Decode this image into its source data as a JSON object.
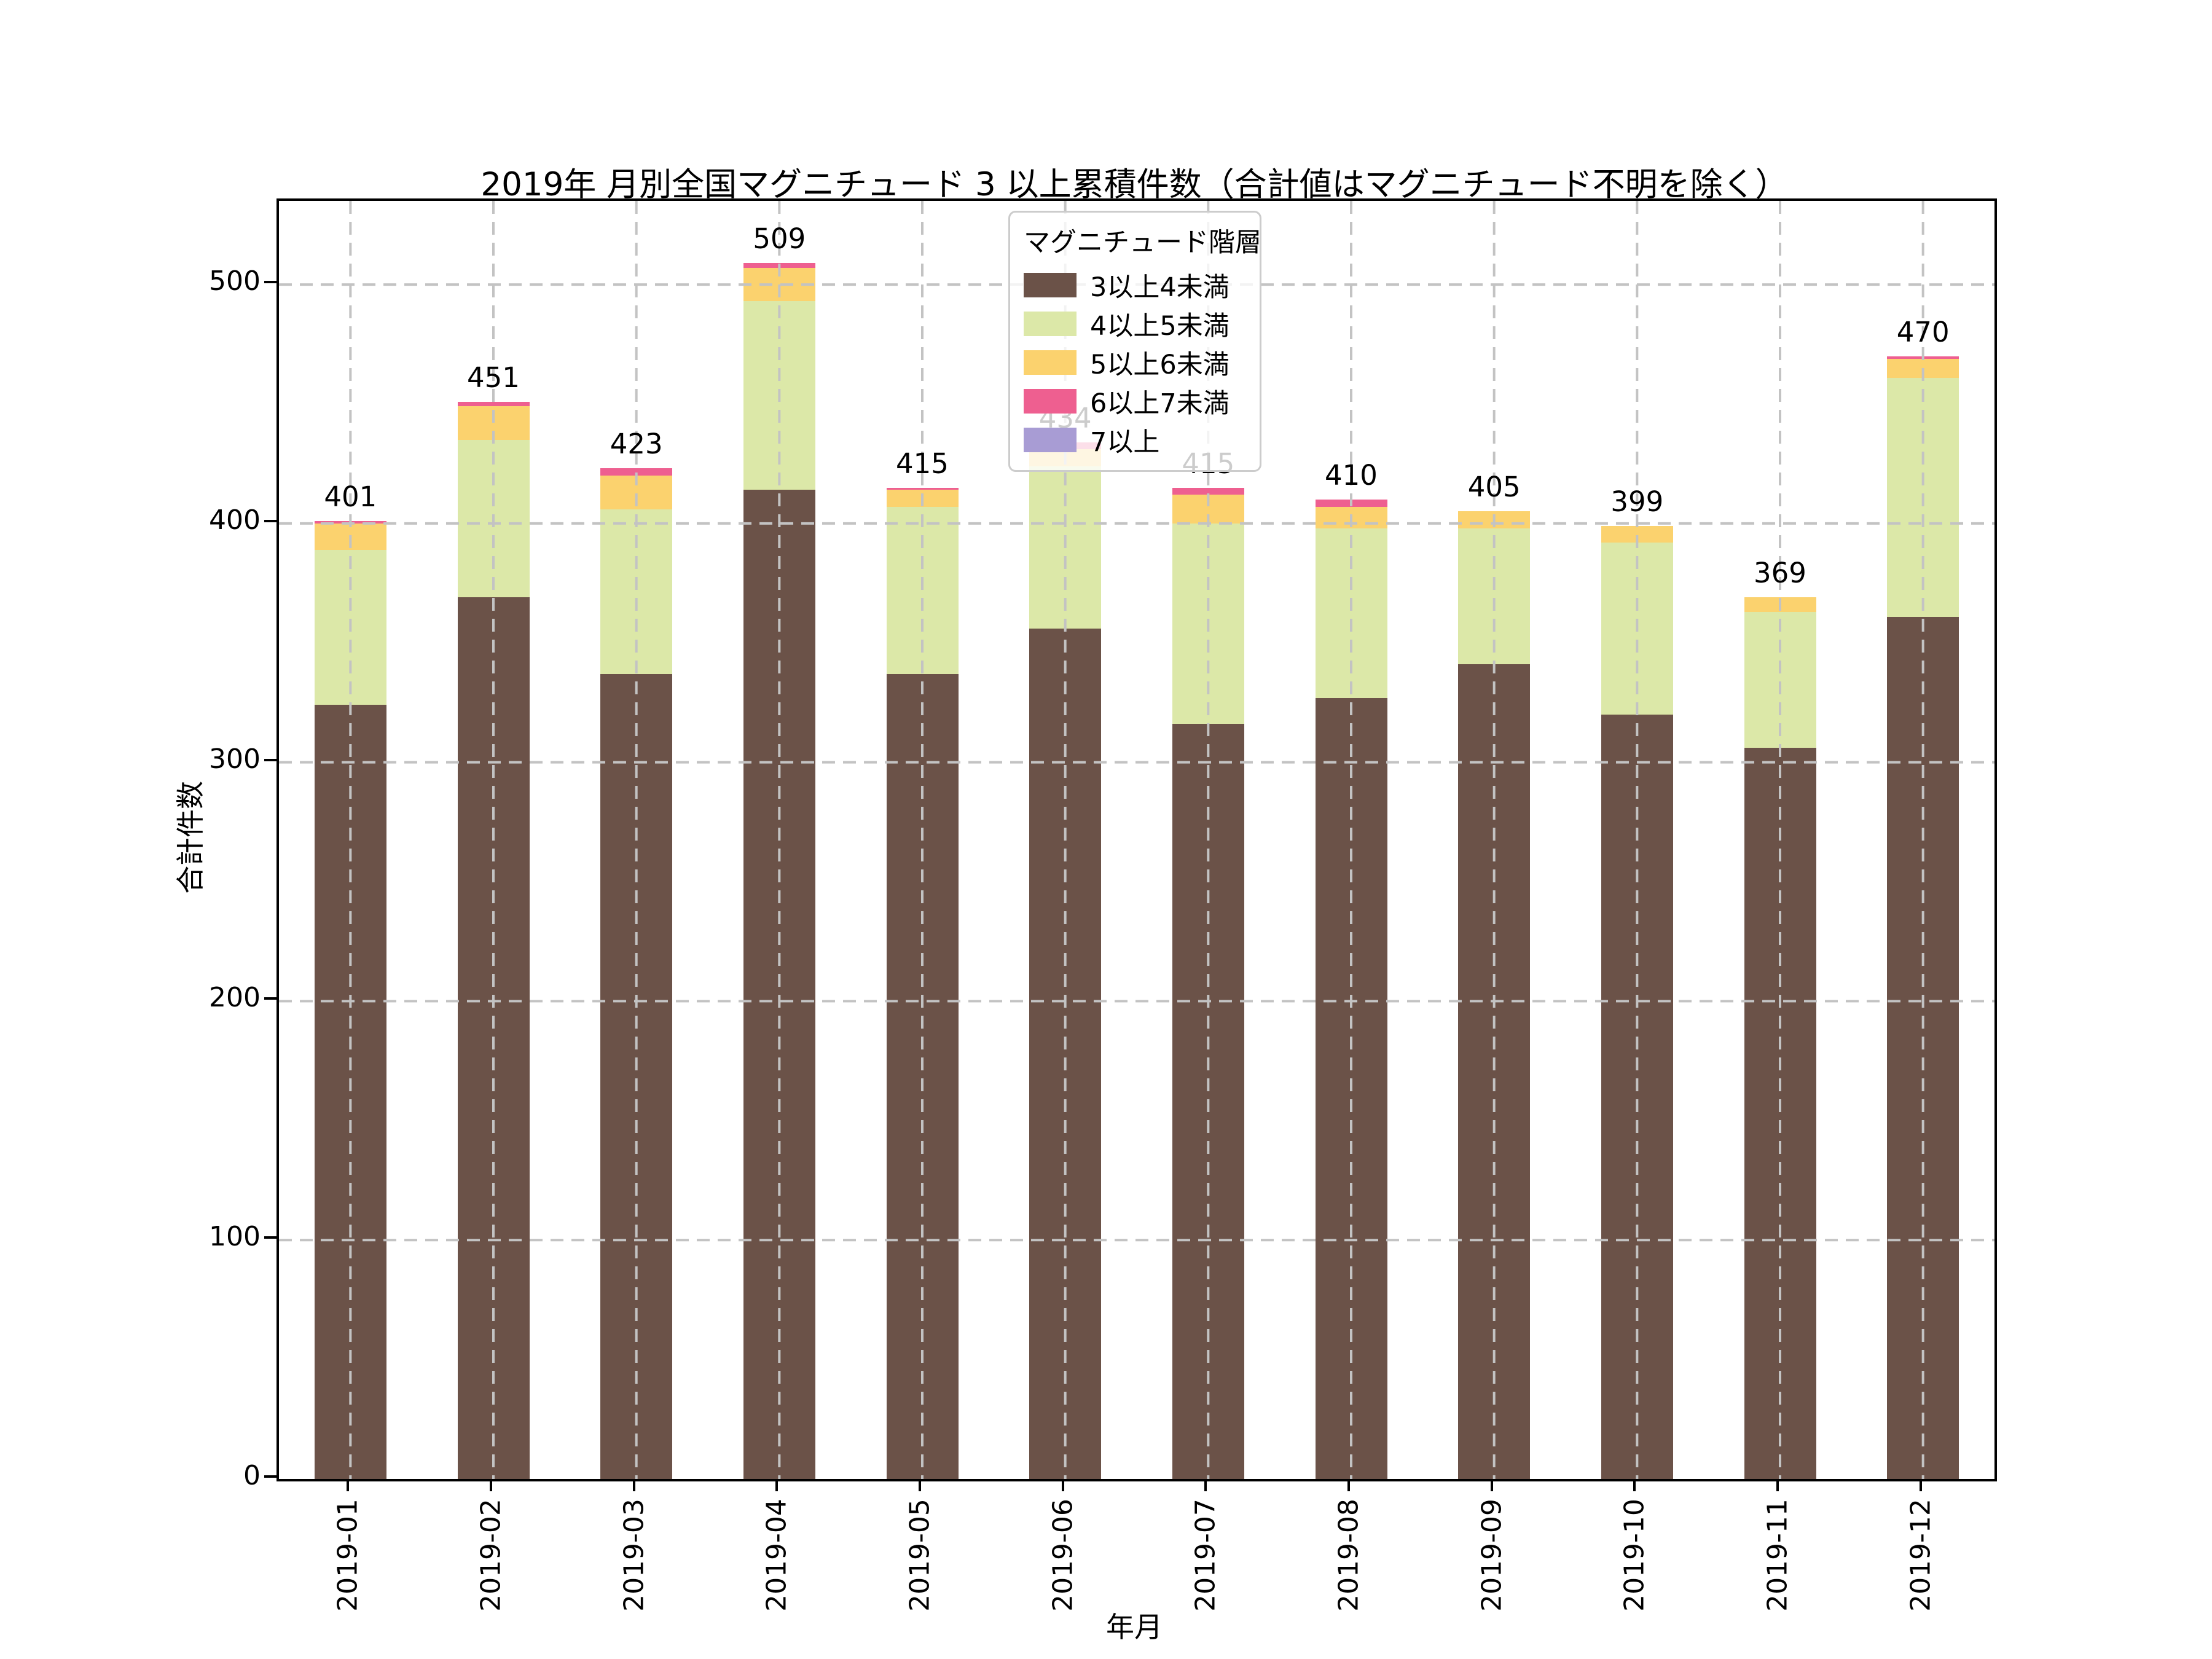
{
  "chart_data": {
    "type": "bar",
    "stacked": true,
    "title": "2019年 月別全国マグニチュード 3 以上累積件数（合計値はマグニチュード不明を除く）",
    "xlabel": "年月",
    "ylabel": "合計件数",
    "ylim": [
      0,
      535
    ],
    "yticks": [
      0,
      100,
      200,
      300,
      400,
      500
    ],
    "grid": true,
    "grid_style": "dashed",
    "grid_color": "#c3c3c3",
    "categories": [
      "2019-01",
      "2019-02",
      "2019-03",
      "2019-04",
      "2019-05",
      "2019-06",
      "2019-07",
      "2019-08",
      "2019-09",
      "2019-10",
      "2019-11",
      "2019-12"
    ],
    "series": [
      {
        "name": "3以上4未満",
        "color": "#6B5248",
        "values": [
          324,
          369,
          337,
          414,
          337,
          356,
          316,
          327,
          341,
          320,
          306,
          361
        ]
      },
      {
        "name": "4以上5未満",
        "color": "#DCE8A8",
        "values": [
          65,
          66,
          69,
          79,
          70,
          68,
          84,
          71,
          57,
          72,
          57,
          100
        ]
      },
      {
        "name": "5以上6未満",
        "color": "#FBD26E",
        "values": [
          11,
          14,
          14,
          14,
          7,
          7,
          12,
          9,
          7,
          7,
          6,
          8
        ]
      },
      {
        "name": "6以上7未満",
        "color": "#EE5F90",
        "values": [
          1,
          2,
          3,
          2,
          1,
          3,
          3,
          3,
          0,
          0,
          0,
          1
        ]
      },
      {
        "name": "7以上",
        "color": "#A89CD4",
        "values": [
          0,
          0,
          0,
          0,
          0,
          0,
          0,
          0,
          0,
          0,
          0,
          0
        ]
      }
    ],
    "totals": [
      401,
      451,
      423,
      509,
      415,
      434,
      415,
      410,
      405,
      399,
      369,
      470
    ],
    "legend": {
      "title": "マグニチュード階層",
      "position": "upper-center-inside"
    }
  }
}
